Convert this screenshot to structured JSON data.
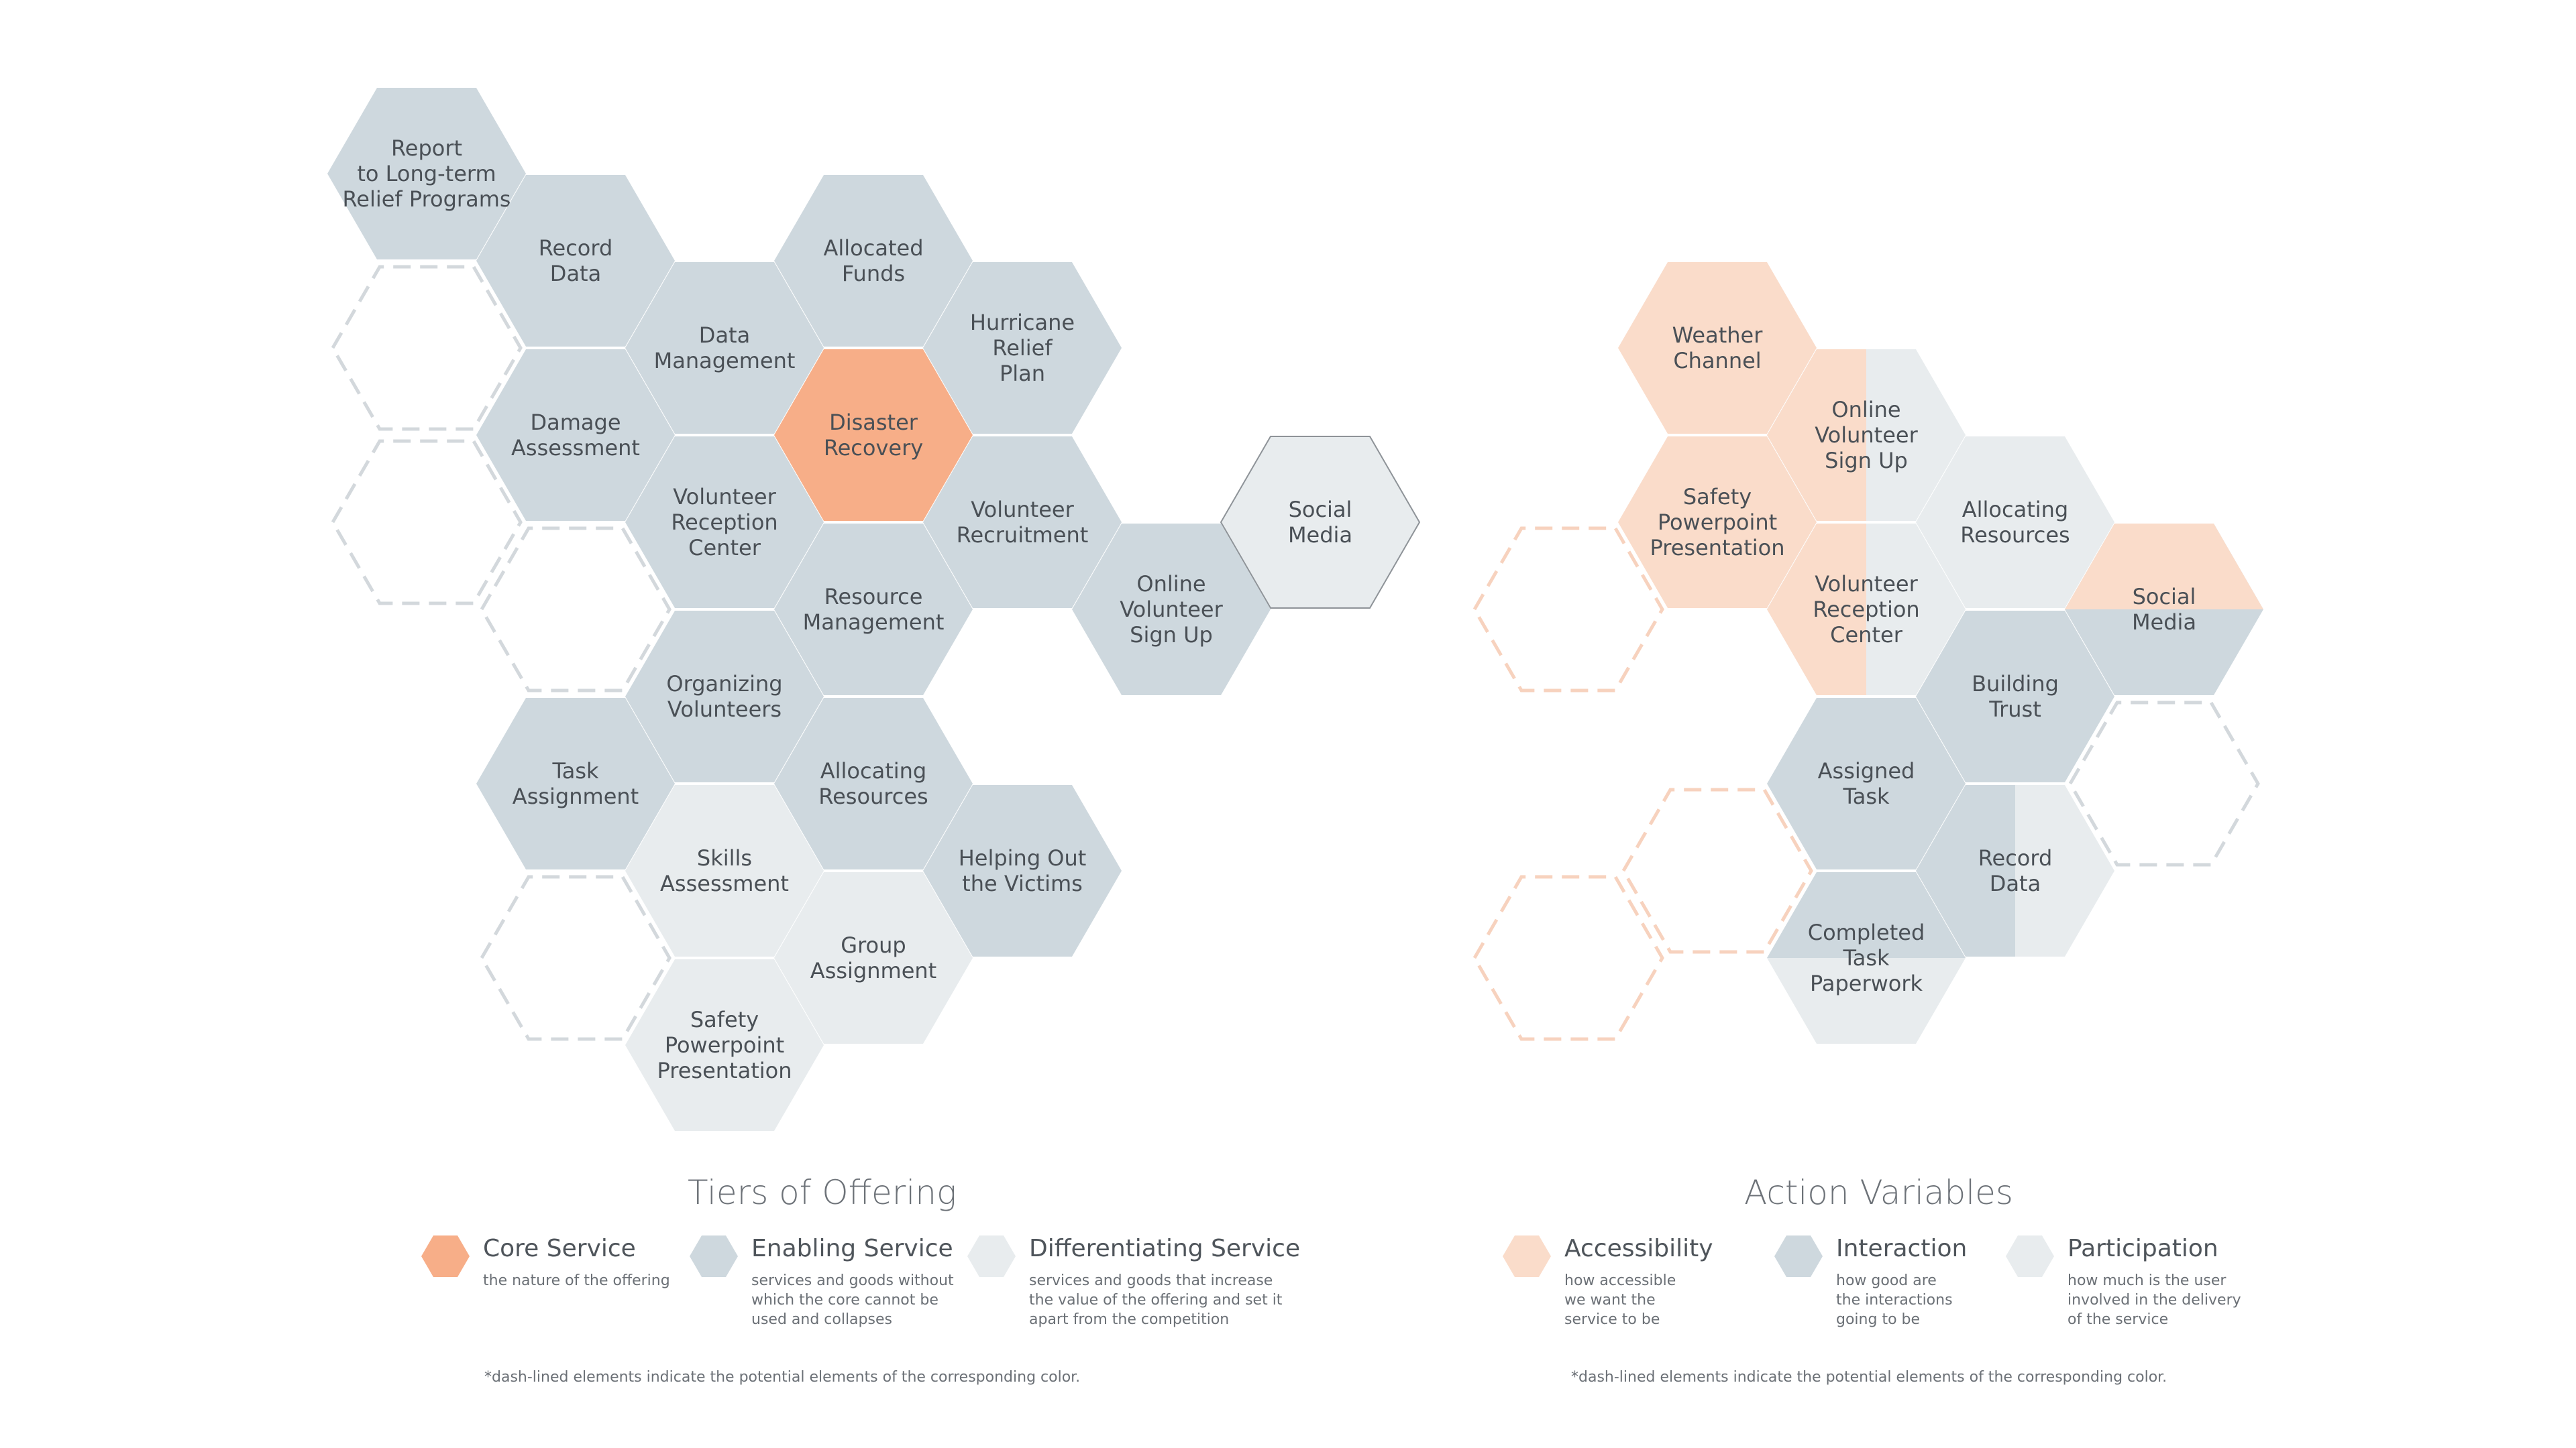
{
  "colors": {
    "core": "#F7AE88",
    "enabling": "#CED8DE",
    "differentiating": "#E8ECEE",
    "accessibility": "#FADCCA",
    "interaction": "#CED8DE",
    "participation": "#E8ECEE",
    "dash_gray": "#D3D8DC",
    "dash_orange": "#F7D2BE",
    "text": "#4A5056"
  },
  "left_diagram": {
    "title": "Tiers of Offering",
    "hexagons": [
      {
        "label": "Report\nto Long-term\nRelief Programs",
        "type": "enabling"
      },
      {
        "label": "Record\nData",
        "type": "enabling"
      },
      {
        "label": "Allocated\nFunds",
        "type": "enabling"
      },
      {
        "label": "Data\nManagement",
        "type": "enabling"
      },
      {
        "label": "Hurricane\nRelief\nPlan",
        "type": "enabling"
      },
      {
        "label": "Damage\nAssessment",
        "type": "enabling"
      },
      {
        "label": "Disaster\nRecovery",
        "type": "core"
      },
      {
        "label": "Volunteer\nReception\nCenter",
        "type": "enabling"
      },
      {
        "label": "Volunteer\nRecruitment",
        "type": "enabling"
      },
      {
        "label": "Social\nMedia",
        "type": "differentiating",
        "outlined": true
      },
      {
        "label": "Resource\nManagement",
        "type": "enabling"
      },
      {
        "label": "Online\nVolunteer\nSign Up",
        "type": "enabling"
      },
      {
        "label": "Organizing\nVolunteers",
        "type": "enabling"
      },
      {
        "label": "Task\nAssignment",
        "type": "enabling"
      },
      {
        "label": "Allocating\nResources",
        "type": "enabling"
      },
      {
        "label": "Skills\nAssessment",
        "type": "differentiating"
      },
      {
        "label": "Helping Out\nthe Victims",
        "type": "enabling"
      },
      {
        "label": "Group\nAssignment",
        "type": "differentiating"
      },
      {
        "label": "Safety\nPowerpoint\nPresentation",
        "type": "differentiating"
      }
    ],
    "legend": [
      {
        "label": "Core Service",
        "desc": "the nature of the offering",
        "type": "core"
      },
      {
        "label": "Enabling Service",
        "desc": "services and goods without\nwhich the core cannot be\nused and collapses",
        "type": "enabling"
      },
      {
        "label": "Differentiating Service",
        "desc": "services and goods that increase\nthe value of the offering and set it\napart from the competition",
        "type": "differentiating"
      }
    ],
    "footnote": "*dash-lined elements indicate the potential elements of the corresponding color."
  },
  "right_diagram": {
    "title": "Action Variables",
    "hexagons": [
      {
        "label": "Weather\nChannel",
        "fill": "accessibility"
      },
      {
        "label": "Online\nVolunteer\nSign Up",
        "fill": "accessibility+participation"
      },
      {
        "label": "Safety\nPowerpoint\nPresentation",
        "fill": "accessibility"
      },
      {
        "label": "Allocating\nResources",
        "fill": "participation"
      },
      {
        "label": "Volunteer\nReception\nCenter",
        "fill": "accessibility+participation"
      },
      {
        "label": "Social\nMedia",
        "fill": "accessibility/interaction"
      },
      {
        "label": "Building\nTrust",
        "fill": "interaction"
      },
      {
        "label": "Assigned\nTask",
        "fill": "interaction"
      },
      {
        "label": "Record\nData",
        "fill": "interaction+participation"
      },
      {
        "label": "Completed\nTask\nPaperwork",
        "fill": "interaction/participation"
      }
    ],
    "legend": [
      {
        "label": "Accessibility",
        "desc": "how accessible\nwe want the\nservice to be",
        "type": "accessibility"
      },
      {
        "label": "Interaction",
        "desc": "how good are\nthe interactions\ngoing to be",
        "type": "interaction"
      },
      {
        "label": "Participation",
        "desc": "how much is the user\ninvolved in the delivery\nof the service",
        "type": "participation"
      }
    ],
    "footnote": "*dash-lined elements indicate the potential elements of the corresponding color."
  }
}
